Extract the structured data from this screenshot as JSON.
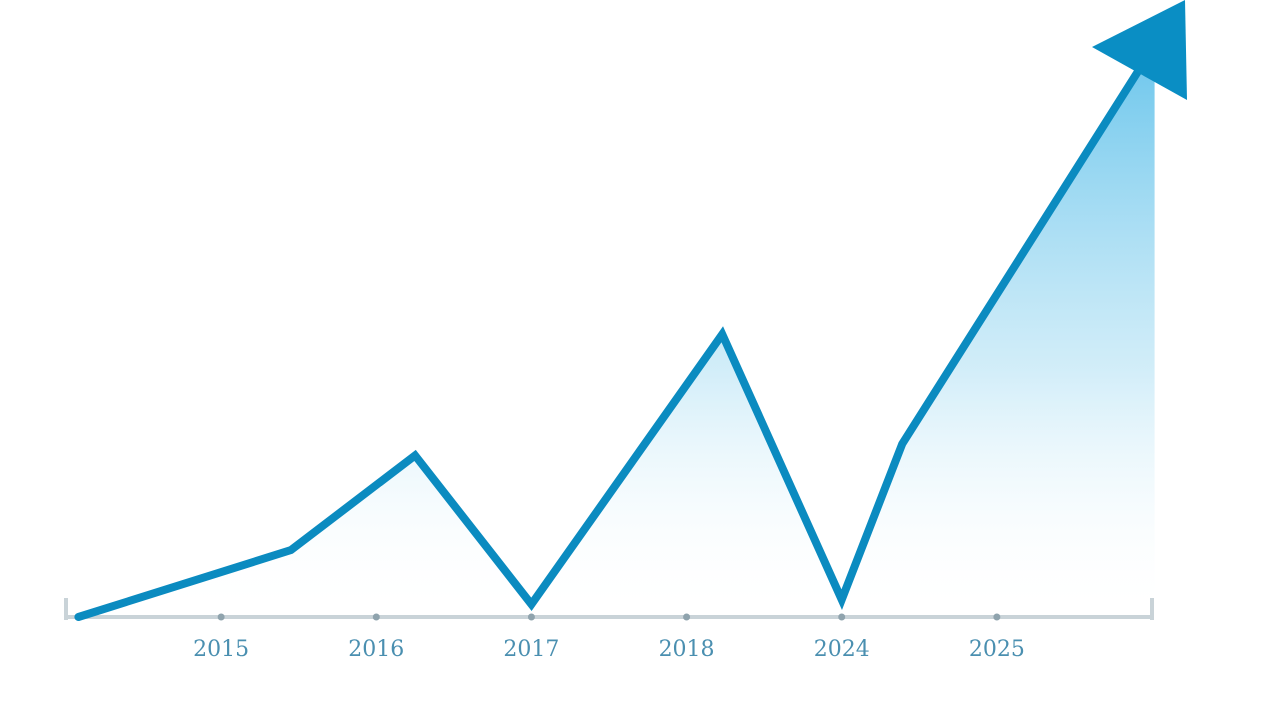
{
  "chart_data": {
    "type": "line",
    "x": [
      0.08,
      1.45,
      2.25,
      3.0,
      4.23,
      5.0,
      5.39,
      6.92
    ],
    "series": [
      {
        "color": "#0b8bc0",
        "values": [
          0,
          11.6,
          28,
          2.2,
          49,
          3,
          30,
          95
        ]
      }
    ],
    "xlim": [
      0,
      7
    ],
    "xticks": [
      {
        "value": 1,
        "label": "2015"
      },
      {
        "value": 2,
        "label": "2016"
      },
      {
        "value": 3,
        "label": "2017"
      },
      {
        "value": 4,
        "label": "2018"
      },
      {
        "value": 5,
        "label": "2024"
      },
      {
        "value": 6,
        "label": "2025"
      }
    ],
    "ylim": [
      0,
      100
    ]
  }
}
